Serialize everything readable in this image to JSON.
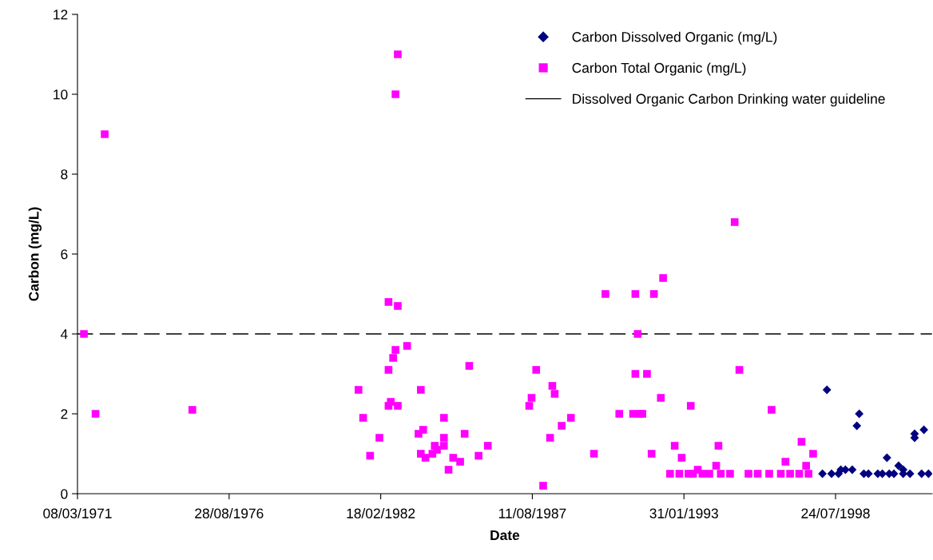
{
  "chart_data": {
    "type": "scatter",
    "xlabel": "Date",
    "ylabel": "Carbon (mg/L)",
    "xlim": [
      "1971-03-08",
      "2002-01-17"
    ],
    "xticks": [
      {
        "value": "1971-03-08",
        "label": "08/03/1971"
      },
      {
        "value": "1976-08-28",
        "label": "28/08/1976"
      },
      {
        "value": "1982-02-18",
        "label": "18/02/1982"
      },
      {
        "value": "1987-08-11",
        "label": "11/08/1987"
      },
      {
        "value": "1993-01-31",
        "label": "31/01/1993"
      },
      {
        "value": "1998-07-24",
        "label": "24/07/1998"
      }
    ],
    "ylim": [
      0,
      12
    ],
    "yticks": [
      0,
      2,
      4,
      6,
      8,
      10,
      12
    ],
    "grid": false,
    "legend": "top right",
    "ref_lines": [
      {
        "axis": "y",
        "value": 4,
        "label": "Dissolved Organic Carbon Drinking water guideline",
        "color": "#000000",
        "line_style": "dashed"
      }
    ],
    "series": [
      {
        "name": "Carbon Dissolved Organic (mg/L)",
        "color": "#000080",
        "marker": "diamond",
        "x": [
          "1998-02",
          "1998-04",
          "1998-06",
          "1998-09",
          "1998-10",
          "1998-12",
          "1999-03",
          "1999-05",
          "1999-06",
          "1999-08",
          "1999-10",
          "2000-02",
          "2000-04",
          "2000-06",
          "2000-07",
          "2000-09",
          "2000-11",
          "2001-01",
          "2001-01",
          "2001-04",
          "2001-06",
          "2001-06",
          "2001-09",
          "2001-10",
          "2001-12"
        ],
        "values": [
          0.5,
          2.6,
          0.5,
          0.5,
          0.6,
          0.6,
          0.6,
          1.7,
          2.0,
          0.5,
          0.5,
          0.5,
          0.5,
          0.9,
          0.5,
          0.5,
          0.7,
          0.6,
          0.5,
          0.5,
          1.5,
          1.4,
          0.5,
          1.6,
          0.5
        ]
      },
      {
        "name": "Carbon Total Organic (mg/L)",
        "color": "#ff00ff",
        "marker": "square",
        "x": [
          "1971-06",
          "1971-11",
          "1972-03",
          "1975-05",
          "1981-05",
          "1981-07",
          "1981-10",
          "1982-02",
          "1982-06",
          "1982-10",
          "1982-09",
          "1982-10",
          "1982-09",
          "1982-08",
          "1982-06",
          "1982-07",
          "1982-06",
          "1982-10",
          "1983-02",
          "1983-08",
          "1984-06",
          "1985-05",
          "1983-09",
          "1983-07",
          "1984-06",
          "1985-03",
          "1984-02",
          "1984-06",
          "1986-01",
          "1983-08",
          "1983-10",
          "1984-01",
          "1984-03",
          "1984-10",
          "1985-01",
          "1985-09",
          "1984-08",
          "1987-10",
          "1987-08",
          "1987-07",
          "1988-05",
          "1988-06",
          "1989-01",
          "1988-09",
          "1988-04",
          "1988-01",
          "1989-11",
          "1990-04",
          "1990-10",
          "1991-05",
          "1991-06",
          "1991-05",
          "1991-10",
          "1991-04",
          "1991-07",
          "1991-08",
          "1992-01",
          "1992-05",
          "1992-04",
          "1991-12",
          "1993-05",
          "1992-10",
          "1993-01",
          "1993-08",
          "1994-12",
          "1995-02",
          "1996-04",
          "1994-05",
          "1997-05",
          "1997-10",
          "1996-10",
          "1994-04",
          "1997-07",
          "1992-08",
          "1992-12",
          "1993-04",
          "1993-06",
          "1993-10",
          "1994-01",
          "1994-06",
          "1994-10",
          "1995-06",
          "1995-10",
          "1996-03",
          "1996-08",
          "1996-12",
          "1997-04",
          "1997-08"
        ],
        "values": [
          4.0,
          2.0,
          9.0,
          2.1,
          2.6,
          1.9,
          0.95,
          1.4,
          4.8,
          4.7,
          10.0,
          11.0,
          3.6,
          3.4,
          3.1,
          2.3,
          2.2,
          2.2,
          3.7,
          2.6,
          1.9,
          3.2,
          1.6,
          1.5,
          1.4,
          1.5,
          1.2,
          1.2,
          1.2,
          1.0,
          0.9,
          1.0,
          1.1,
          0.9,
          0.8,
          0.95,
          0.6,
          3.1,
          2.4,
          2.2,
          2.7,
          2.5,
          1.9,
          1.7,
          1.4,
          0.2,
          1.0,
          5.0,
          2.0,
          5.0,
          4.0,
          3.0,
          3.0,
          2.0,
          2.0,
          2.0,
          5.0,
          5.4,
          2.4,
          1.0,
          2.2,
          1.2,
          0.9,
          0.6,
          6.8,
          3.1,
          2.1,
          1.2,
          1.3,
          1.0,
          0.8,
          0.7,
          0.7,
          0.5,
          0.5,
          0.5,
          0.5,
          0.5,
          0.5,
          0.5,
          0.5,
          0.5,
          0.5,
          0.5,
          0.5,
          0.5,
          0.5,
          0.5
        ]
      }
    ]
  }
}
